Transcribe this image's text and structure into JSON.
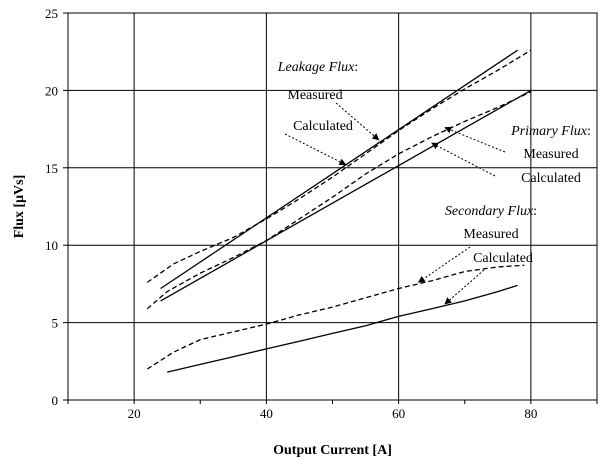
{
  "chart_data": {
    "type": "line",
    "xlabel": "Output Current [A]",
    "ylabel": "Flux [μVs]",
    "xlim": [
      10,
      90
    ],
    "ylim": [
      0,
      25
    ],
    "x_ticks": [
      20,
      40,
      60,
      80
    ],
    "y_ticks": [
      0,
      5,
      10,
      15,
      20,
      25
    ],
    "grid": true,
    "series": [
      {
        "name": "Leakage Flux: Measured",
        "style": "dashed",
        "color": "#000000",
        "x": [
          22,
          26,
          30,
          35,
          40,
          45,
          50,
          55,
          60,
          65,
          70,
          75,
          80
        ],
        "y": [
          7.6,
          8.8,
          9.6,
          10.5,
          11.7,
          13.0,
          14.4,
          15.9,
          17.4,
          18.8,
          20.1,
          21.3,
          22.6
        ]
      },
      {
        "name": "Leakage Flux: Calculated",
        "style": "solid",
        "color": "#000000",
        "x": [
          24,
          78
        ],
        "y": [
          7.2,
          22.6
        ]
      },
      {
        "name": "Primary Flux: Measured",
        "style": "dashed",
        "color": "#000000",
        "x": [
          22,
          25,
          30,
          35,
          40,
          45,
          50,
          55,
          60,
          65,
          70,
          75,
          80
        ],
        "y": [
          5.9,
          7.0,
          8.2,
          9.2,
          10.3,
          11.7,
          13.1,
          14.6,
          15.9,
          17.0,
          18.0,
          18.9,
          19.9
        ]
      },
      {
        "name": "Primary Flux: Calculated",
        "style": "solid",
        "color": "#000000",
        "x": [
          24,
          80
        ],
        "y": [
          6.4,
          20.0
        ]
      },
      {
        "name": "Secondary Flux: Measured",
        "style": "dashed",
        "color": "#000000",
        "x": [
          22,
          26,
          30,
          35,
          40,
          45,
          50,
          55,
          60,
          65,
          70,
          75,
          79
        ],
        "y": [
          2.0,
          3.1,
          3.9,
          4.4,
          4.9,
          5.5,
          6.0,
          6.6,
          7.2,
          7.7,
          8.3,
          8.6,
          8.7
        ]
      },
      {
        "name": "Secondary Flux: Calculated",
        "style": "solid",
        "color": "#000000",
        "x": [
          25,
          30,
          35,
          40,
          45,
          50,
          55,
          60,
          65,
          70,
          75,
          78
        ],
        "y": [
          1.8,
          2.3,
          2.8,
          3.3,
          3.8,
          4.3,
          4.8,
          5.4,
          5.9,
          6.4,
          7.0,
          7.4
        ]
      }
    ],
    "annotations": [
      {
        "group": "Leakage Flux",
        "title": "Leakage Flux",
        "measured": "Measured",
        "calculated": "Calculated",
        "measured_arrow_to": [
          57,
          16.8
        ],
        "calculated_arrow_to": [
          52,
          15.2
        ]
      },
      {
        "group": "Primary Flux",
        "title": "Primary Flux",
        "measured": "Measured",
        "calculated": "Calculated",
        "measured_arrow_to": [
          67,
          17.6
        ],
        "calculated_arrow_to": [
          65,
          16.6
        ]
      },
      {
        "group": "Secondary Flux",
        "title": "Secondary Flux",
        "measured": "Measured",
        "calculated": "Calculated",
        "measured_arrow_to": [
          63,
          7.6
        ],
        "calculated_arrow_to": [
          67,
          6.2
        ]
      }
    ],
    "colon": ":"
  }
}
